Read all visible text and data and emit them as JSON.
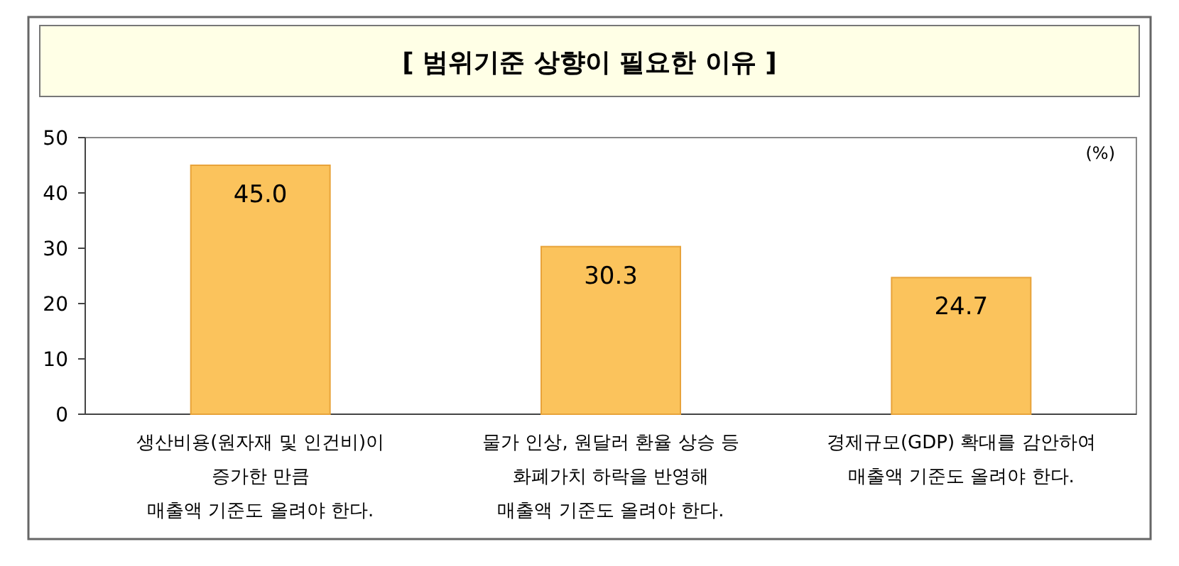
{
  "chart_data": {
    "type": "bar",
    "title": "[ 범위기준 상향이 필요한 이유 ]",
    "categories": [
      "생산비용(원자재 및 인건비)이\n증가한 만큼\n매출액 기준도 올려야 한다.",
      "물가 인상, 원달러 환율 상승 등\n화폐가치 하락을 반영해\n매출액 기준도 올려야 한다.",
      "경제규모(GDP) 확대를 감안하여\n매출액 기준도 올려야 한다."
    ],
    "values": [
      45.0,
      30.3,
      24.7
    ],
    "color": "#fbc35c",
    "ylim": [
      0,
      50
    ],
    "yticks": [
      0,
      10,
      20,
      30,
      40,
      50
    ],
    "value_labels": [
      "45.0",
      "30.3",
      "24.7"
    ],
    "annotations": [
      "(%)"
    ]
  }
}
